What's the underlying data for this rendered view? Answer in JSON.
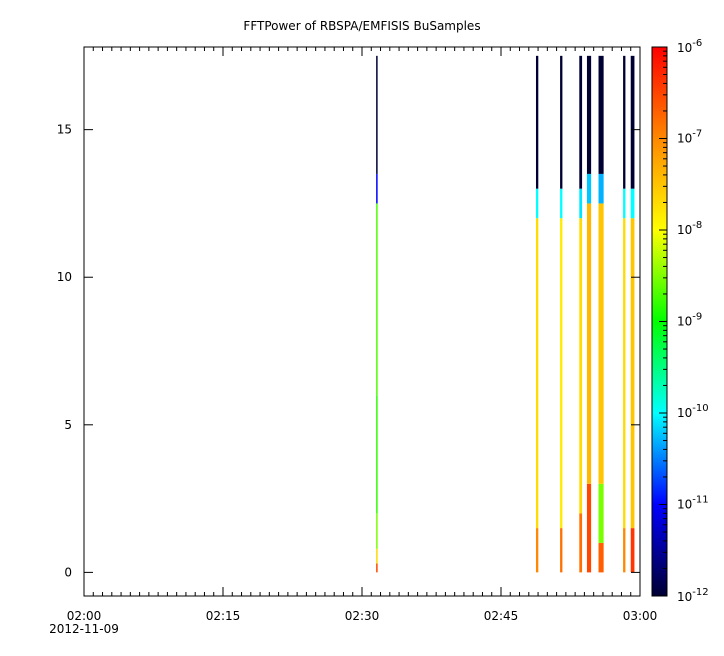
{
  "chart_data": {
    "type": "heatmap",
    "title": "FFTPower of RBSPA/EMFISIS  BuSamples",
    "xlabel": "",
    "ylabel": "",
    "x_date_label": "2012-11-09",
    "xlim": [
      "02:00",
      "03:00"
    ],
    "x_ticks": [
      {
        "value_min": 0,
        "label": "02:00"
      },
      {
        "value_min": 15,
        "label": "02:15"
      },
      {
        "value_min": 30,
        "label": "02:30"
      },
      {
        "value_min": 45,
        "label": "02:45"
      },
      {
        "value_min": 60,
        "label": "03:00"
      }
    ],
    "x_minor_step_min": 1,
    "ylim": [
      -0.8,
      17.8
    ],
    "y_ticks": [
      0,
      5,
      10,
      15
    ],
    "grid": false,
    "colorbar": {
      "scale": "log",
      "range": [
        1e-12,
        1e-06
      ],
      "tick_labels": [
        {
          "base": "10",
          "exp": "-12",
          "value": 1e-12
        },
        {
          "base": "10",
          "exp": "-11",
          "value": 1e-11
        },
        {
          "base": "10",
          "exp": "-10",
          "value": 1e-10
        },
        {
          "base": "10",
          "exp": "-9",
          "value": 1e-09
        },
        {
          "base": "10",
          "exp": "-8",
          "value": 1e-08
        },
        {
          "base": "10",
          "exp": "-7",
          "value": 1e-07
        },
        {
          "base": "10",
          "exp": "-6",
          "value": 1e-06
        }
      ],
      "colors": [
        "#000033",
        "#0000ff",
        "#00ffff",
        "#00ff00",
        "#ffff00",
        "#ff8800",
        "#ff0000"
      ]
    },
    "series": [
      {
        "time_min": 31.6,
        "width_min": 0.15,
        "bins": [
          {
            "y_from": 0,
            "y_to": 0.3,
            "value": 3e-07
          },
          {
            "y_from": 0.3,
            "y_to": 0.8,
            "value": 2e-08
          },
          {
            "y_from": 0.8,
            "y_to": 2.0,
            "value": 3e-09
          },
          {
            "y_from": 2.0,
            "y_to": 6.0,
            "value": 1.5e-09
          },
          {
            "y_from": 6.0,
            "y_to": 12.5,
            "value": 2e-09
          },
          {
            "y_from": 12.5,
            "y_to": 13.5,
            "value": 1e-11
          },
          {
            "y_from": 13.5,
            "y_to": 17.5,
            "value": 1e-12
          }
        ]
      },
      {
        "time_min": 48.9,
        "width_min": 0.25,
        "bins": [
          {
            "y_from": 0,
            "y_to": 1.5,
            "value": 1e-07
          },
          {
            "y_from": 1.5,
            "y_to": 12.0,
            "value": 2e-08
          },
          {
            "y_from": 12.0,
            "y_to": 13.0,
            "value": 1e-10
          },
          {
            "y_from": 13.0,
            "y_to": 17.5,
            "value": 1e-12
          }
        ]
      },
      {
        "time_min": 51.5,
        "width_min": 0.25,
        "bins": [
          {
            "y_from": 0,
            "y_to": 1.5,
            "value": 1.5e-07
          },
          {
            "y_from": 1.5,
            "y_to": 12.0,
            "value": 1.5e-08
          },
          {
            "y_from": 12.0,
            "y_to": 13.0,
            "value": 1e-10
          },
          {
            "y_from": 13.0,
            "y_to": 17.5,
            "value": 1e-12
          }
        ]
      },
      {
        "time_min": 53.6,
        "width_min": 0.3,
        "bins": [
          {
            "y_from": 0,
            "y_to": 2.0,
            "value": 1.5e-07
          },
          {
            "y_from": 2.0,
            "y_to": 12.0,
            "value": 2e-08
          },
          {
            "y_from": 12.0,
            "y_to": 13.0,
            "value": 8e-11
          },
          {
            "y_from": 13.0,
            "y_to": 17.5,
            "value": 1e-12
          }
        ]
      },
      {
        "time_min": 54.5,
        "width_min": 0.45,
        "bins": [
          {
            "y_from": 0,
            "y_to": 3.0,
            "value": 3e-07
          },
          {
            "y_from": 3.0,
            "y_to": 12.5,
            "value": 4e-08
          },
          {
            "y_from": 12.5,
            "y_to": 13.5,
            "value": 6e-11
          },
          {
            "y_from": 13.5,
            "y_to": 17.5,
            "value": 1e-12
          }
        ]
      },
      {
        "time_min": 55.8,
        "width_min": 0.55,
        "bins": [
          {
            "y_from": 0,
            "y_to": 1.0,
            "value": 2e-07
          },
          {
            "y_from": 1.0,
            "y_to": 3.0,
            "value": 3e-09
          },
          {
            "y_from": 3.0,
            "y_to": 12.5,
            "value": 3e-08
          },
          {
            "y_from": 12.5,
            "y_to": 13.5,
            "value": 5e-11
          },
          {
            "y_from": 13.5,
            "y_to": 17.5,
            "value": 1e-12
          }
        ]
      },
      {
        "time_min": 58.3,
        "width_min": 0.25,
        "bins": [
          {
            "y_from": 0,
            "y_to": 1.5,
            "value": 1e-07
          },
          {
            "y_from": 1.5,
            "y_to": 12.0,
            "value": 2e-08
          },
          {
            "y_from": 12.0,
            "y_to": 13.0,
            "value": 1e-10
          },
          {
            "y_from": 13.0,
            "y_to": 17.5,
            "value": 1e-12
          }
        ]
      },
      {
        "time_min": 59.2,
        "width_min": 0.4,
        "bins": [
          {
            "y_from": 0,
            "y_to": 1.5,
            "value": 4e-07
          },
          {
            "y_from": 1.5,
            "y_to": 12.0,
            "value": 3e-08
          },
          {
            "y_from": 12.0,
            "y_to": 13.0,
            "value": 1e-10
          },
          {
            "y_from": 13.0,
            "y_to": 17.5,
            "value": 1e-12
          }
        ]
      }
    ]
  }
}
